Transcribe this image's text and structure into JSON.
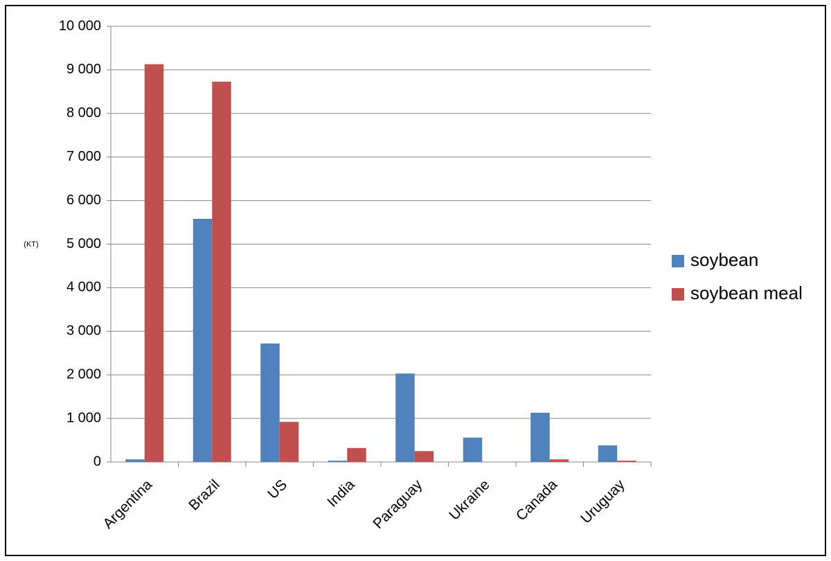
{
  "chart_data": {
    "type": "bar",
    "y_label": "(KT)",
    "categories": [
      "Argentina",
      "Brazil",
      "US",
      "India",
      "Paraguay",
      "Ukraine",
      "Canada",
      "Uruguay"
    ],
    "series": [
      {
        "name": "soybean",
        "color": "#4f81bd",
        "values": [
          60,
          5580,
          2720,
          30,
          2030,
          560,
          1130,
          380
        ]
      },
      {
        "name": "soybean meal",
        "color": "#c0504d",
        "values": [
          9130,
          8730,
          920,
          320,
          250,
          0,
          60,
          30
        ]
      }
    ],
    "ylim": [
      0,
      10000
    ],
    "yticks": [
      0,
      {
        "value": 1000,
        "label": "1 000"
      },
      {
        "value": 2000,
        "label": "2 000"
      },
      {
        "value": 3000,
        "label": "3 000"
      },
      {
        "value": 4000,
        "label": "4 000"
      },
      {
        "value": 5000,
        "label": "5 000"
      },
      {
        "value": 6000,
        "label": "6 000"
      },
      {
        "value": 7000,
        "label": "7 000"
      },
      {
        "value": 8000,
        "label": "8 000"
      },
      {
        "value": 9000,
        "label": "9 000"
      },
      {
        "value": 10000,
        "label": "10 000"
      }
    ],
    "grid": true,
    "legend": "right"
  }
}
